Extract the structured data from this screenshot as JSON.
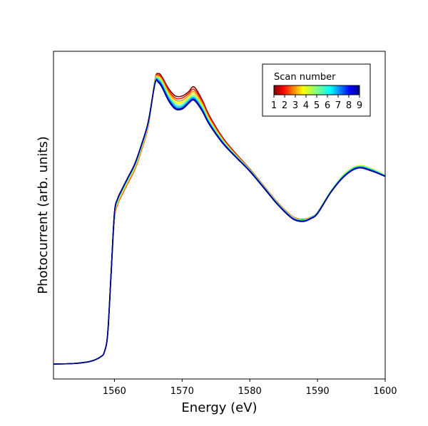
{
  "chart_data": {
    "type": "line",
    "title": "",
    "xlabel": "Energy (eV)",
    "ylabel": "Photocurrent (arb. units)",
    "xlim": [
      1551,
      1600
    ],
    "ylim": [
      -0.05,
      1.05
    ],
    "x_ticks": [
      1560,
      1570,
      1580,
      1590,
      1600
    ],
    "x_tick_labels": [
      "1560",
      "1570",
      "1580",
      "1590",
      "1600"
    ],
    "y_ticks_shown": false,
    "grid": false,
    "colorbar": {
      "title": "Scan number",
      "placement": "top-right",
      "colormap": "jet",
      "ticks": [
        "1",
        "2",
        "3",
        "4",
        "5",
        "6",
        "7",
        "8",
        "9"
      ]
    },
    "series_colors": [
      "#800000",
      "#ff1a00",
      "#ff9900",
      "#e6ff1a",
      "#66ff99",
      "#00d4ff",
      "#0055ff",
      "#0000e6",
      "#00007f"
    ],
    "x": [
      1551,
      1554,
      1556,
      1557,
      1558,
      1558.5,
      1559,
      1559.5,
      1560,
      1560.5,
      1561,
      1562,
      1563,
      1564,
      1565,
      1566,
      1566.5,
      1567,
      1568,
      1569,
      1570,
      1571,
      1571.5,
      1572,
      1573,
      1574,
      1576,
      1578,
      1580,
      1582,
      1584,
      1586,
      1587,
      1588,
      1589,
      1590,
      1592,
      1594,
      1596,
      1598,
      1600
    ],
    "series": [
      {
        "values": [
          0.0,
          0.002,
          0.007,
          0.013,
          0.025,
          0.04,
          0.1,
          0.3,
          0.49,
          0.54,
          0.565,
          0.61,
          0.655,
          0.72,
          0.8,
          0.955,
          0.975,
          0.965,
          0.925,
          0.9,
          0.9,
          0.915,
          0.93,
          0.925,
          0.885,
          0.835,
          0.76,
          0.705,
          0.655,
          0.6,
          0.545,
          0.5,
          0.488,
          0.486,
          0.493,
          0.51,
          0.58,
          0.635,
          0.66,
          0.65,
          0.632
        ]
      },
      {
        "values": [
          0.0,
          0.002,
          0.007,
          0.013,
          0.025,
          0.04,
          0.1,
          0.3,
          0.487,
          0.538,
          0.563,
          0.608,
          0.653,
          0.718,
          0.8,
          0.953,
          0.97,
          0.96,
          0.918,
          0.893,
          0.893,
          0.909,
          0.922,
          0.917,
          0.879,
          0.83,
          0.757,
          0.703,
          0.654,
          0.6,
          0.545,
          0.5,
          0.488,
          0.486,
          0.493,
          0.51,
          0.58,
          0.635,
          0.662,
          0.652,
          0.632
        ]
      },
      {
        "values": [
          0.0,
          0.002,
          0.007,
          0.013,
          0.025,
          0.04,
          0.1,
          0.3,
          0.49,
          0.541,
          0.566,
          0.611,
          0.656,
          0.721,
          0.802,
          0.952,
          0.966,
          0.955,
          0.912,
          0.886,
          0.885,
          0.902,
          0.914,
          0.909,
          0.873,
          0.825,
          0.754,
          0.701,
          0.653,
          0.599,
          0.544,
          0.499,
          0.487,
          0.485,
          0.493,
          0.51,
          0.581,
          0.637,
          0.664,
          0.654,
          0.633
        ]
      },
      {
        "values": [
          0.0,
          0.002,
          0.007,
          0.013,
          0.025,
          0.04,
          0.1,
          0.3,
          0.495,
          0.546,
          0.571,
          0.616,
          0.661,
          0.726,
          0.805,
          0.95,
          0.962,
          0.95,
          0.906,
          0.879,
          0.878,
          0.896,
          0.907,
          0.902,
          0.867,
          0.82,
          0.751,
          0.699,
          0.652,
          0.598,
          0.543,
          0.498,
          0.486,
          0.484,
          0.492,
          0.51,
          0.582,
          0.639,
          0.666,
          0.656,
          0.634
        ]
      },
      {
        "values": [
          0.0,
          0.002,
          0.007,
          0.013,
          0.025,
          0.04,
          0.1,
          0.3,
          0.5,
          0.55,
          0.575,
          0.62,
          0.665,
          0.73,
          0.808,
          0.948,
          0.958,
          0.945,
          0.9,
          0.872,
          0.871,
          0.89,
          0.9,
          0.895,
          0.861,
          0.815,
          0.748,
          0.697,
          0.651,
          0.597,
          0.542,
          0.497,
          0.485,
          0.483,
          0.492,
          0.509,
          0.581,
          0.637,
          0.664,
          0.654,
          0.633
        ]
      },
      {
        "values": [
          0.0,
          0.002,
          0.007,
          0.013,
          0.025,
          0.04,
          0.1,
          0.3,
          0.503,
          0.553,
          0.578,
          0.623,
          0.668,
          0.733,
          0.81,
          0.946,
          0.954,
          0.94,
          0.895,
          0.867,
          0.866,
          0.885,
          0.895,
          0.89,
          0.857,
          0.812,
          0.746,
          0.696,
          0.65,
          0.596,
          0.541,
          0.496,
          0.484,
          0.482,
          0.491,
          0.508,
          0.58,
          0.635,
          0.662,
          0.652,
          0.632
        ]
      },
      {
        "values": [
          0.0,
          0.002,
          0.007,
          0.013,
          0.025,
          0.04,
          0.1,
          0.3,
          0.505,
          0.555,
          0.58,
          0.625,
          0.67,
          0.735,
          0.812,
          0.944,
          0.95,
          0.936,
          0.89,
          0.862,
          0.861,
          0.881,
          0.891,
          0.886,
          0.853,
          0.809,
          0.744,
          0.695,
          0.649,
          0.595,
          0.54,
          0.495,
          0.483,
          0.481,
          0.49,
          0.507,
          0.579,
          0.633,
          0.66,
          0.65,
          0.631
        ]
      },
      {
        "values": [
          0.0,
          0.002,
          0.007,
          0.013,
          0.025,
          0.04,
          0.1,
          0.3,
          0.506,
          0.556,
          0.581,
          0.626,
          0.671,
          0.736,
          0.813,
          0.943,
          0.947,
          0.932,
          0.886,
          0.858,
          0.858,
          0.878,
          0.888,
          0.883,
          0.85,
          0.806,
          0.742,
          0.694,
          0.648,
          0.594,
          0.539,
          0.494,
          0.482,
          0.48,
          0.489,
          0.506,
          0.578,
          0.632,
          0.659,
          0.649,
          0.63
        ]
      },
      {
        "values": [
          0.0,
          0.002,
          0.007,
          0.013,
          0.025,
          0.04,
          0.1,
          0.3,
          0.507,
          0.557,
          0.582,
          0.627,
          0.672,
          0.737,
          0.814,
          0.942,
          0.945,
          0.93,
          0.884,
          0.856,
          0.856,
          0.876,
          0.886,
          0.881,
          0.848,
          0.805,
          0.741,
          0.693,
          0.647,
          0.593,
          0.538,
          0.493,
          0.481,
          0.479,
          0.488,
          0.505,
          0.577,
          0.631,
          0.658,
          0.648,
          0.63
        ]
      }
    ]
  }
}
